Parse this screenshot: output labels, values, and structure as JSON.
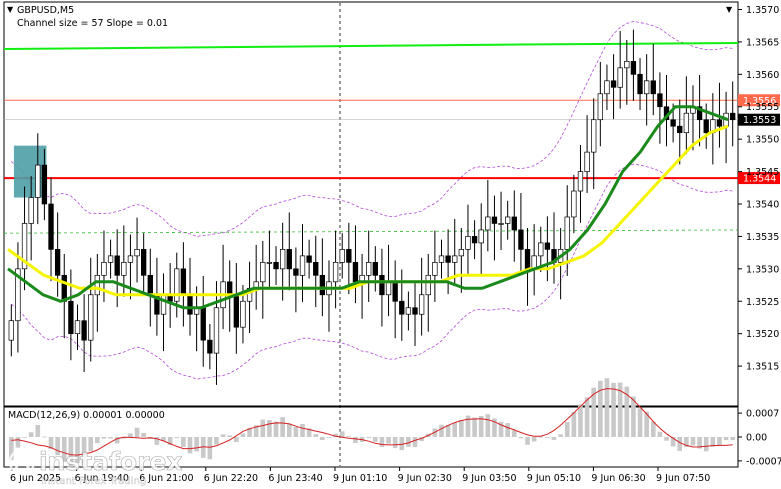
{
  "header": {
    "symbol": "GBPUSD,M5",
    "indicator": "Channel size = 57 Slope = 0.01"
  },
  "macd_label": "MACD(12,26,9) 0.00001 0.00000",
  "watermark": {
    "brand": "instaforex",
    "tagline": "Instant Forex Trading"
  },
  "colors": {
    "candle": "#000000",
    "ma_fast": "#1a8a1a",
    "ma_slow": "#f5f500",
    "top_line": "#11ee11",
    "support": "#ff0000",
    "resistance_label": "#ff6a4d",
    "bollinger": "#b44bd6",
    "macd_hist": "#c9c9c9",
    "macd_signal": "#d62020",
    "highlight_box": "#4f9fa6",
    "price_tag_bg": "#ffffff"
  },
  "chart_data": {
    "type": "candlestick",
    "title": "GBPUSD,M5",
    "yaxis_ticks": [
      "1.3570",
      "1.3565",
      "1.3560",
      "1.3555",
      "1.3550",
      "1.3545",
      "1.3540",
      "1.3535",
      "1.3530",
      "1.3525",
      "1.3520",
      "1.3515"
    ],
    "ylim": [
      1.3509,
      1.3571
    ],
    "xaxis_ticks": [
      "6 Jun 2025",
      "6 Jun 19:40",
      "6 Jun 21:00",
      "6 Jun 22:20",
      "6 Jun 23:40",
      "9 Jun 01:10",
      "9 Jun 02:30",
      "9 Jun 03:50",
      "9 Jun 05:10",
      "9 Jun 06:30",
      "9 Jun 07:50"
    ],
    "levels": [
      {
        "price": 1.3556,
        "label": "1.3556",
        "kind": "resistance"
      },
      {
        "price": 1.3544,
        "label": "1.3544",
        "kind": "support"
      },
      {
        "price": 1.3553,
        "label": "1.3553",
        "kind": "current"
      }
    ],
    "highlight_zone": {
      "x_start": 1,
      "x_end": 5,
      "y_low": 1.3541,
      "y_high": 1.3549
    },
    "candles_close": [
      1.3522,
      1.353,
      1.3537,
      1.3541,
      1.3546,
      1.354,
      1.3533,
      1.3529,
      1.3525,
      1.352,
      1.3522,
      1.3519,
      1.3526,
      1.3529,
      1.3531,
      1.3532,
      1.3529,
      1.3531,
      1.3532,
      1.3533,
      1.3529,
      1.3526,
      1.3523,
      1.3526,
      1.3525,
      1.353,
      1.3526,
      1.3523,
      1.3524,
      1.3519,
      1.3517,
      1.3524,
      1.3528,
      1.3526,
      1.3521,
      1.3525,
      1.3527,
      1.3528,
      1.3531,
      1.3531,
      1.353,
      1.3533,
      1.353,
      1.3529,
      1.3532,
      1.3531,
      1.3529,
      1.3526,
      1.3528,
      1.3531,
      1.3533,
      1.3531,
      1.3528,
      1.3529,
      1.3531,
      1.3529,
      1.3526,
      1.3528,
      1.3525,
      1.3523,
      1.3524,
      1.3523,
      1.3526,
      1.3529,
      1.3531,
      1.3532,
      1.3531,
      1.3532,
      1.3533,
      1.3535,
      1.3534,
      1.3536,
      1.3538,
      1.3537,
      1.3537,
      1.3538,
      1.3536,
      1.3533,
      1.353,
      1.3532,
      1.3534,
      1.3533,
      1.3531,
      1.3533,
      1.3538,
      1.3542,
      1.3545,
      1.3548,
      1.3553,
      1.3557,
      1.3559,
      1.3558,
      1.3561,
      1.3562,
      1.356,
      1.3557,
      1.3559,
      1.3557,
      1.3555,
      1.3553,
      1.3552,
      1.3551,
      1.3554,
      1.3555,
      1.3553,
      1.3551,
      1.3553,
      1.3552,
      1.3554,
      1.3553
    ],
    "ma_fast": [
      1.353,
      1.3528,
      1.3526,
      1.3525,
      1.3526,
      1.3528,
      1.3528,
      1.3527,
      1.3526,
      1.3525,
      1.3524,
      1.3524,
      1.3525,
      1.3526,
      1.3527,
      1.3527,
      1.3527,
      1.3527,
      1.3527,
      1.3527,
      1.3528,
      1.3528,
      1.3528,
      1.3528,
      1.3528,
      1.3528,
      1.3527,
      1.3527,
      1.3528,
      1.3529,
      1.353,
      1.3531,
      1.3533,
      1.3536,
      1.354,
      1.3545,
      1.3548,
      1.3552,
      1.3555,
      1.3555,
      1.3554,
      1.3553
    ],
    "ma_slow": [
      1.3533,
      1.3531,
      1.3529,
      1.3528,
      1.3527,
      1.3527,
      1.3526,
      1.3526,
      1.3526,
      1.3526,
      1.3526,
      1.3526,
      1.3526,
      1.3526,
      1.3527,
      1.3527,
      1.3527,
      1.3527,
      1.3527,
      1.3527,
      1.3528,
      1.3528,
      1.3528,
      1.3528,
      1.3528,
      1.3529,
      1.3529,
      1.3529,
      1.3529,
      1.353,
      1.353,
      1.3531,
      1.3532,
      1.3534,
      1.3537,
      1.354,
      1.3543,
      1.3546,
      1.3549,
      1.3551,
      1.3552
    ]
  }
}
